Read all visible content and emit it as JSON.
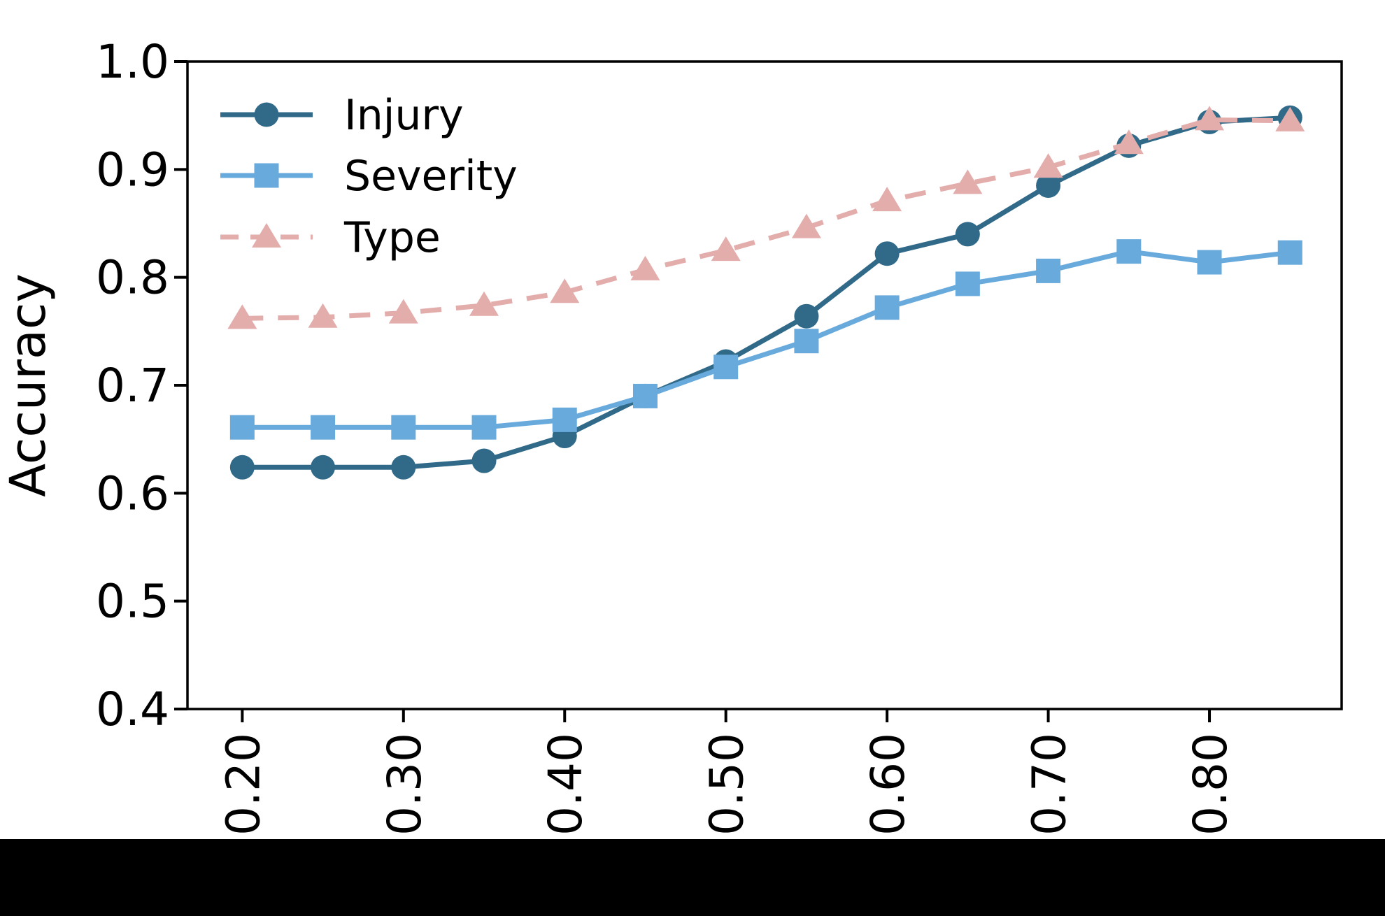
{
  "figure": {
    "background": "#ffffff",
    "axis_color": "#000000",
    "bottom_bar_color": "#000000",
    "text_color": "#000000"
  },
  "chart_data": {
    "type": "line",
    "title": "",
    "xlabel": "",
    "ylabel": "Accuracy",
    "xlim": [
      0.166,
      0.882
    ],
    "ylim": [
      0.4,
      1.0
    ],
    "grid": false,
    "legend_position": "upper left",
    "x": [
      0.2,
      0.25,
      0.3,
      0.35,
      0.4,
      0.45,
      0.5,
      0.55,
      0.6,
      0.65,
      0.7,
      0.75,
      0.8,
      0.85
    ],
    "series": [
      {
        "name": "Injury",
        "color": "#306a88",
        "marker": "circle",
        "linestyle": "solid",
        "values": [
          0.624,
          0.624,
          0.624,
          0.63,
          0.653,
          0.69,
          0.722,
          0.764,
          0.822,
          0.84,
          0.885,
          0.922,
          0.944,
          0.948
        ]
      },
      {
        "name": "Severity",
        "color": "#69aadd",
        "marker": "square",
        "linestyle": "solid",
        "values": [
          0.661,
          0.661,
          0.661,
          0.661,
          0.668,
          0.69,
          0.717,
          0.741,
          0.772,
          0.794,
          0.806,
          0.824,
          0.814,
          0.823
        ]
      },
      {
        "name": "Type",
        "color": "#e3adac",
        "marker": "triangle",
        "linestyle": "dashed",
        "values": [
          0.762,
          0.763,
          0.767,
          0.774,
          0.786,
          0.807,
          0.825,
          0.846,
          0.871,
          0.887,
          0.902,
          0.924,
          0.946,
          0.945
        ]
      }
    ],
    "yticks": [
      1.0,
      0.9,
      0.8,
      0.7,
      0.6,
      0.5,
      0.4
    ],
    "ytick_labels": [
      "1.0",
      "0.9",
      "0.8",
      "0.7",
      "0.6",
      "0.5",
      "0.4"
    ],
    "xticks": [
      0.2,
      0.3,
      0.4,
      0.5,
      0.6,
      0.7,
      0.8
    ],
    "xtick_labels": [
      "0.20",
      "0.30",
      "0.40",
      "0.50",
      "0.60",
      "0.70",
      "0.80"
    ],
    "xtick_rotation": 90
  }
}
